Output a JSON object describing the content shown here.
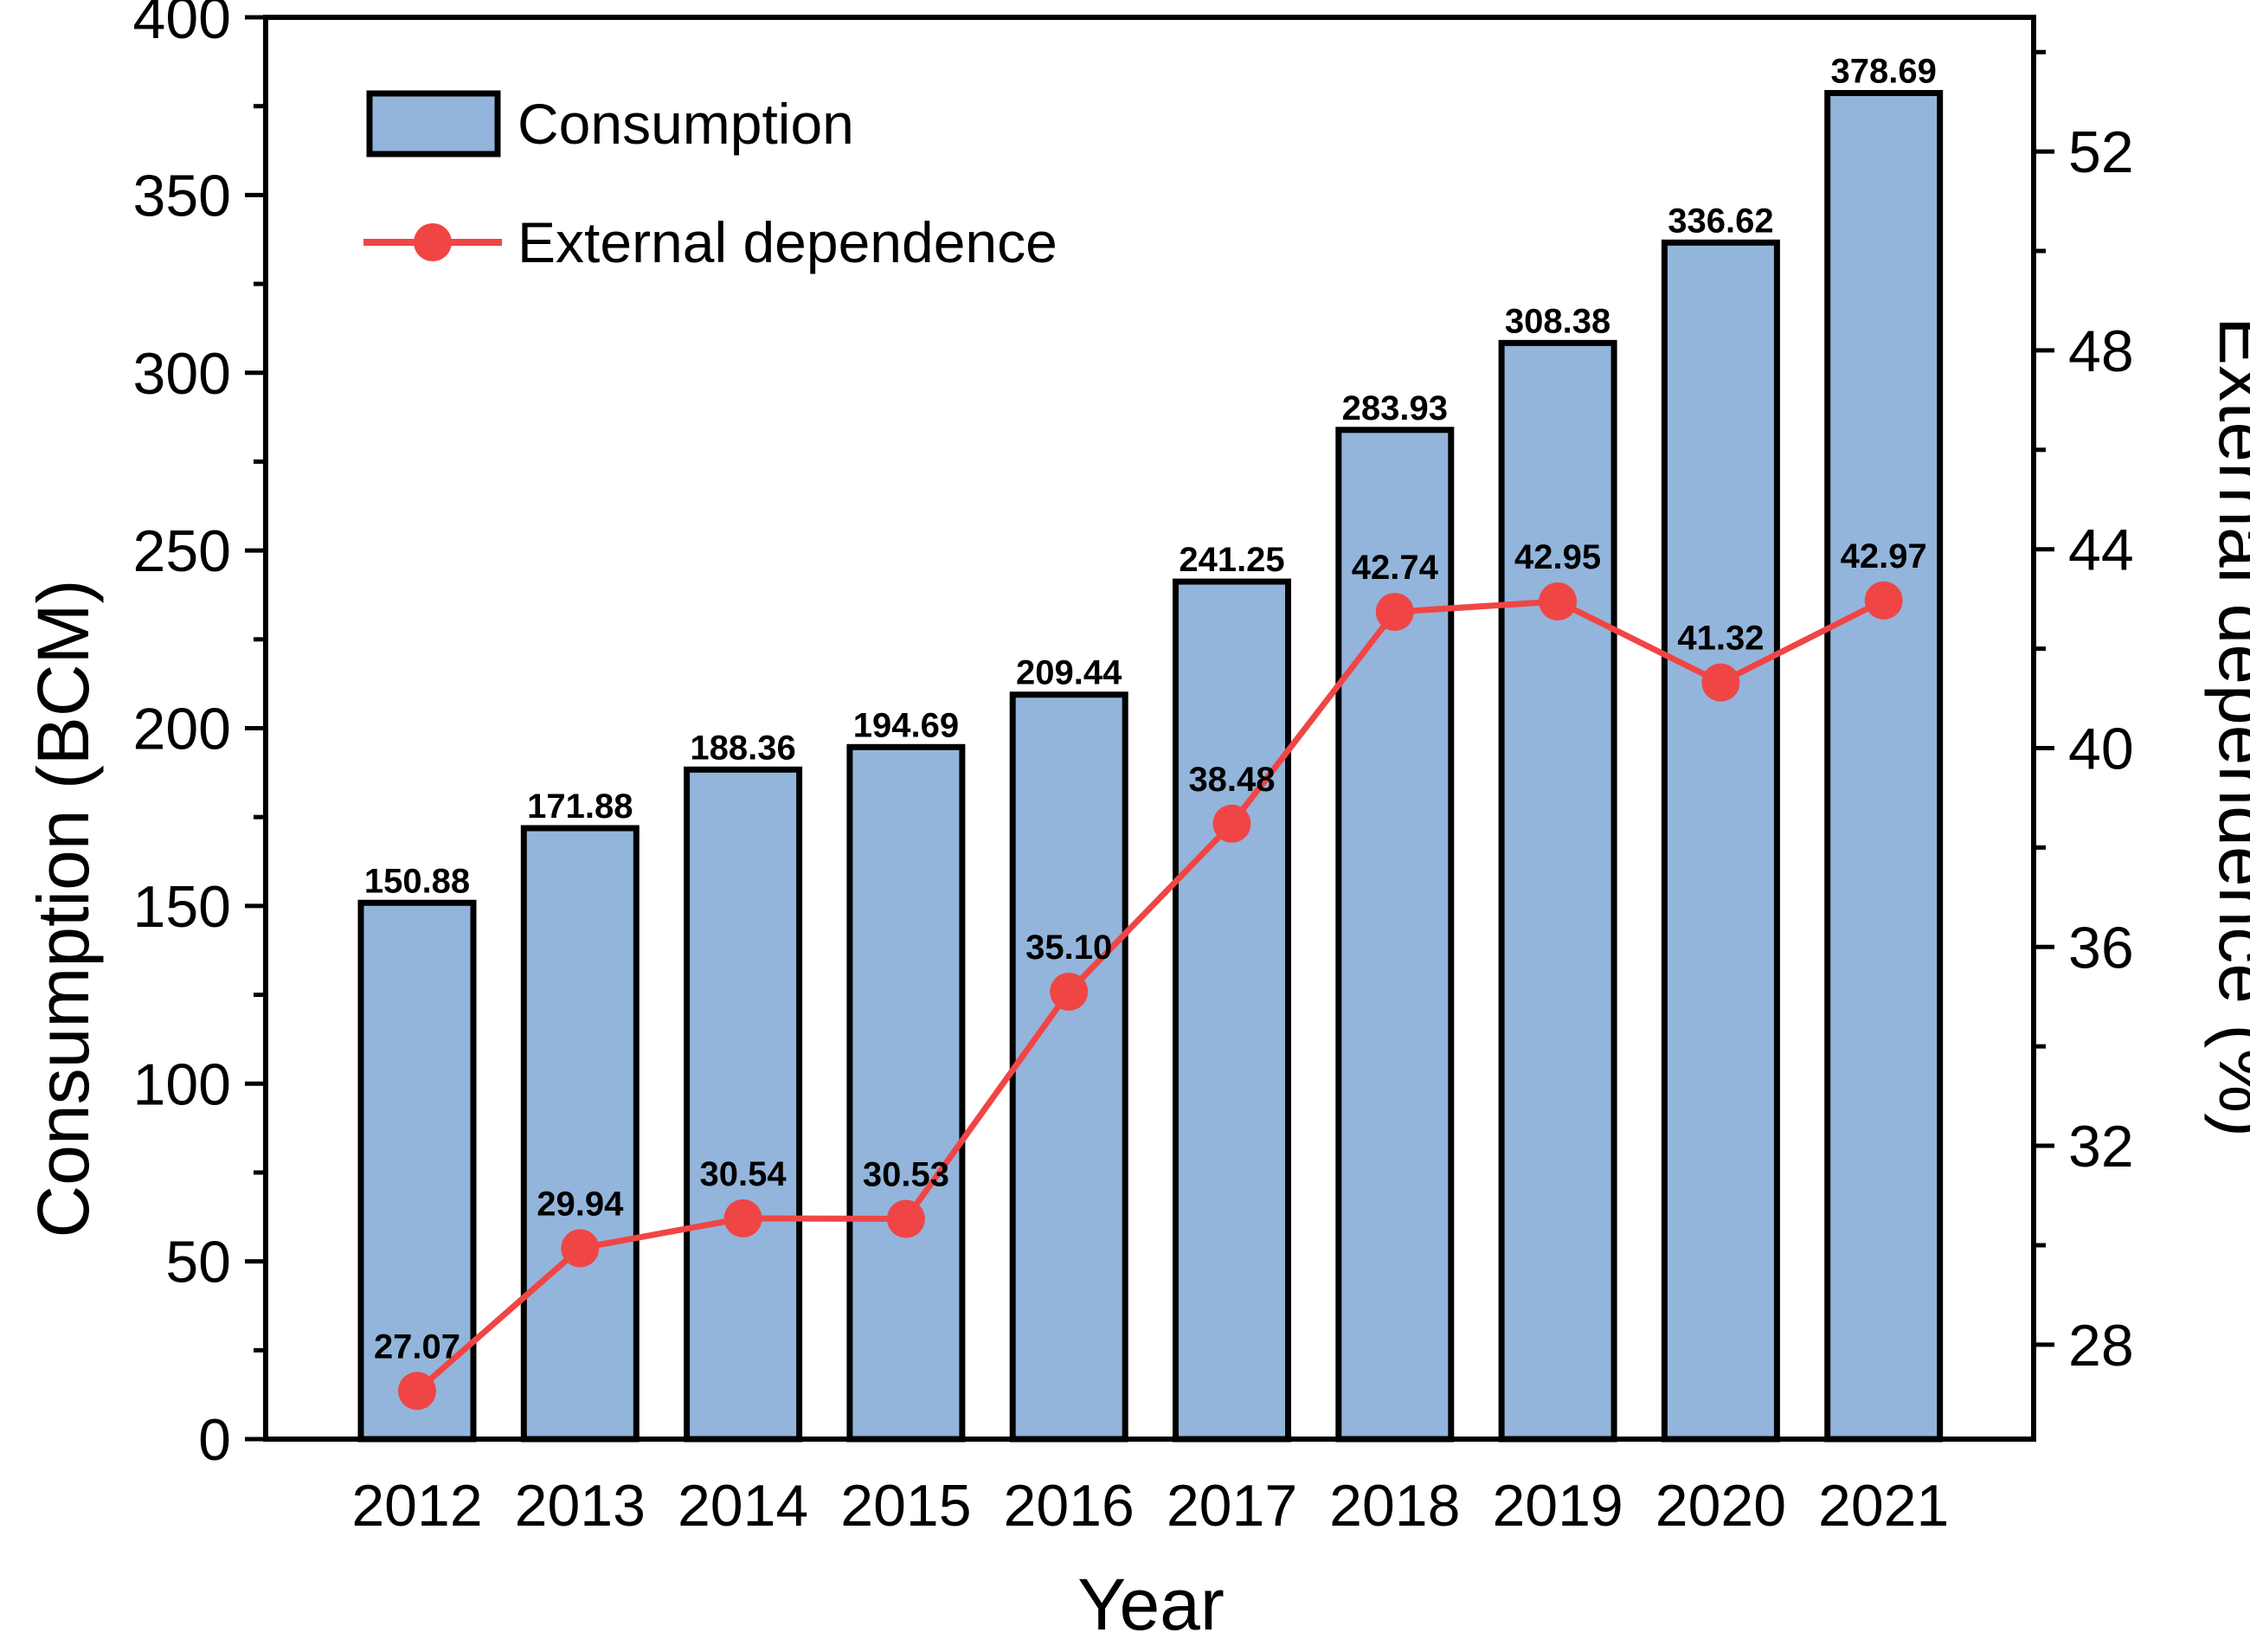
{
  "chart_data": {
    "type": "bar",
    "categories": [
      "2012",
      "2013",
      "2014",
      "2015",
      "2016",
      "2017",
      "2018",
      "2019",
      "2020",
      "2021"
    ],
    "series": [
      {
        "name": "Consumption",
        "type": "bar",
        "axis": "left",
        "values": [
          150.88,
          171.88,
          188.36,
          194.69,
          209.44,
          241.25,
          283.93,
          308.38,
          336.62,
          378.69
        ],
        "labels": [
          "150.88",
          "171.88",
          "188.36",
          "194.69",
          "209.44",
          "241.25",
          "283.93",
          "308.38",
          "336.62",
          "378.69"
        ]
      },
      {
        "name": "External dependence",
        "type": "line",
        "axis": "right",
        "values": [
          27.07,
          29.94,
          30.54,
          30.53,
          35.1,
          38.48,
          42.74,
          42.95,
          41.32,
          42.97
        ],
        "labels": [
          "27.07",
          "29.94",
          "30.54",
          "30.53",
          "35.10",
          "38.48",
          "42.74",
          "42.95",
          "41.32",
          "42.97"
        ]
      }
    ],
    "xlabel": "Year",
    "ylabel": "Consumption (BCM)",
    "y2label": "External dependence (%)",
    "ylim": [
      0,
      400
    ],
    "y2lim": [
      26.1,
      54.7
    ],
    "yticks": [
      0,
      50,
      100,
      150,
      200,
      250,
      300,
      350,
      400
    ],
    "y2ticks": [
      28,
      32,
      36,
      40,
      44,
      48,
      52
    ],
    "legend_position": "top-left",
    "grid": false,
    "colors": {
      "bar_fill": "#93b5db",
      "bar_stroke": "#000000",
      "line": "#f04545",
      "marker": "#f04545"
    }
  }
}
